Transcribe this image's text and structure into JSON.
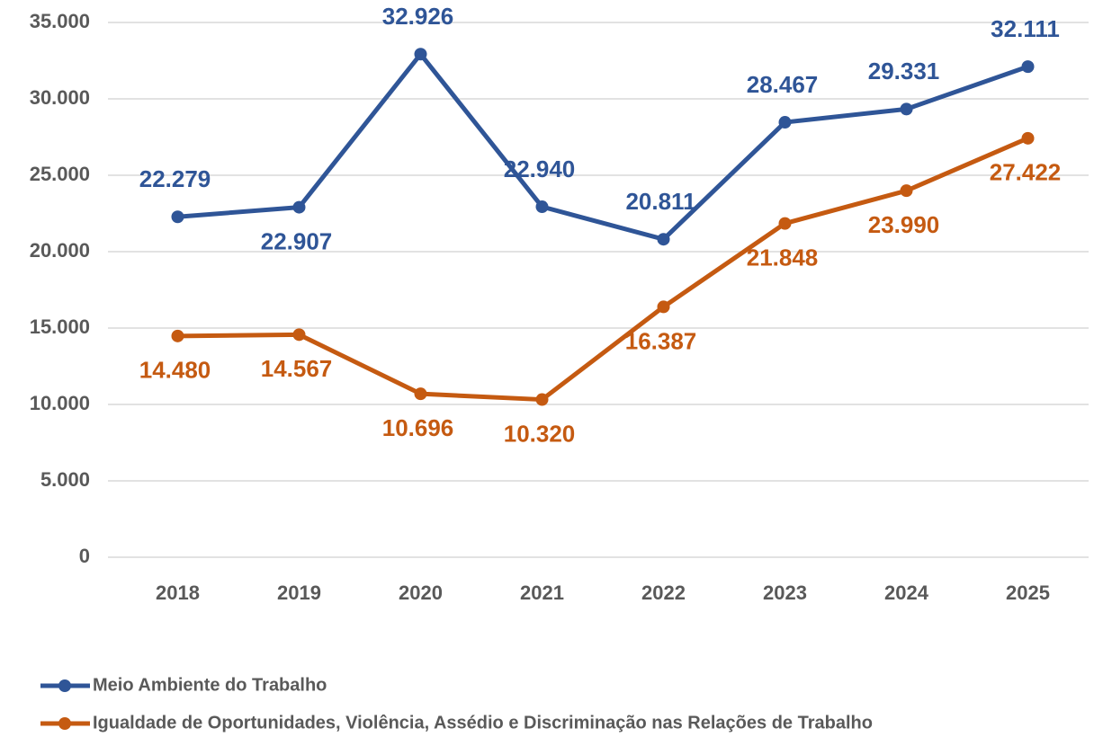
{
  "chart_data": {
    "type": "line",
    "categories": [
      "2018",
      "2019",
      "2020",
      "2021",
      "2022",
      "2023",
      "2024",
      "2025"
    ],
    "series": [
      {
        "name": "Meio Ambiente do Trabalho",
        "color": "#2f5597",
        "values": [
          22279,
          22907,
          32926,
          22940,
          20811,
          28467,
          29331,
          32111
        ],
        "value_labels": [
          "22.279",
          "22.907",
          "32.926",
          "22.940",
          "20.811",
          "28.467",
          "29.331",
          "32.111"
        ]
      },
      {
        "name": "Igualdade de Oportunidades, Violência, Assédio e Discriminação nas Relações de Trabalho",
        "color": "#c55a11",
        "values": [
          14480,
          14567,
          10696,
          10320,
          16387,
          21848,
          23990,
          27422
        ],
        "value_labels": [
          "14.480",
          "14.567",
          "10.696",
          "10.320",
          "16.387",
          "21.848",
          "23.990",
          "27.422"
        ]
      }
    ],
    "ylim": [
      0,
      35000
    ],
    "yticks": [
      0,
      {
        "value": 5000,
        "label": "5.000"
      },
      {
        "value": 10000,
        "label": "10.000"
      },
      {
        "value": 15000,
        "label": "15.000"
      },
      {
        "value": 20000,
        "label": "20.000"
      },
      {
        "value": 25000,
        "label": "25.000"
      },
      {
        "value": 30000,
        "label": "30.000"
      },
      {
        "value": 35000,
        "label": "35.000"
      }
    ],
    "grid": true,
    "legend": "bottom-left"
  }
}
